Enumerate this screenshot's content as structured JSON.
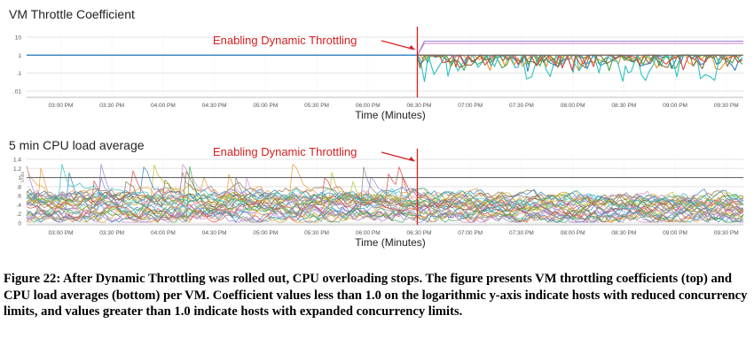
{
  "chart_data": [
    {
      "type": "line",
      "title": "VM Throttle Coefficient",
      "xlabel": "Time (Minutes)",
      "ylabel": "",
      "yscale": "log",
      "ylim": [
        0.01,
        10
      ],
      "yticks": [
        "10",
        "1",
        ".1",
        ".01"
      ],
      "yticks_values": [
        10,
        1,
        0.1,
        0.01
      ],
      "x_ticks": [
        "03:00 PM",
        "03:30 PM",
        "04:00 PM",
        "04:30 PM",
        "05:00 PM",
        "05:30 PM",
        "06:00 PM",
        "06:30 PM",
        "07:00 PM",
        "07:30 PM",
        "08:00 PM",
        "08:30 PM",
        "09:00 PM",
        "09:30 PM"
      ],
      "annotation": "Enabling Dynamic Throttling",
      "annotation_time": "06:30 PM",
      "grid": true,
      "series": [
        {
          "values_before": 1.0,
          "values_after": 6.0,
          "color": "#9b7fd0"
        },
        {
          "values_before": 1.0,
          "values_after": 4.5,
          "color": "#d08ccf"
        },
        {
          "values_before": 1.0,
          "values_after_range": [
            0.12,
            1.0
          ],
          "color": "#2f7fbf"
        },
        {
          "values_before": 1.0,
          "values_after_range": [
            0.12,
            1.0
          ],
          "color": "#e8962e"
        },
        {
          "values_before": 1.0,
          "values_after_range": [
            0.12,
            1.0
          ],
          "color": "#3fa64a"
        },
        {
          "values_before": 1.0,
          "values_after_range": [
            0.03,
            1.0
          ],
          "color": "#2bc0c0"
        },
        {
          "values_before": 1.0,
          "values_after_range": [
            0.12,
            1.0
          ],
          "color": "#d64541"
        },
        {
          "values_before": 1.0,
          "values_after_range": [
            0.15,
            1.0
          ],
          "color": "#8d6e3c"
        }
      ]
    },
    {
      "type": "line",
      "title": "5 min CPU load average",
      "xlabel": "Time (Minutes)",
      "ylabel": "Units",
      "ylim": [
        0,
        1.4
      ],
      "yticks": [
        "1.4",
        "1.2",
        "1",
        ".8",
        ".6",
        ".4",
        ".2",
        "0"
      ],
      "yticks_values": [
        1.4,
        1.2,
        1.0,
        0.8,
        0.6,
        0.4,
        0.2,
        0
      ],
      "x_ticks": [
        "03:00 PM",
        "03:30 PM",
        "04:00 PM",
        "04:30 PM",
        "05:00 PM",
        "05:30 PM",
        "06:00 PM",
        "06:30 PM",
        "07:00 PM",
        "07:30 PM",
        "08:00 PM",
        "08:30 PM",
        "09:00 PM",
        "09:30 PM"
      ],
      "annotation": "Enabling Dynamic Throttling",
      "annotation_time": "06:30 PM",
      "reference_line": 1.0,
      "grid": true,
      "series_count": 30,
      "typical_range_before": [
        0.05,
        0.9
      ],
      "typical_range_after": [
        0.05,
        0.8
      ],
      "peaks_before": [
        1.35,
        1.1,
        1.05,
        1.25
      ],
      "colors": [
        "#2f7fbf",
        "#e8962e",
        "#3fa64a",
        "#d64541",
        "#9b7fd0",
        "#8d6e3c",
        "#d08ccf",
        "#7f7f7f",
        "#bcbd22",
        "#2bc0c0"
      ]
    }
  ],
  "caption": "Figure 22: After Dynamic Throttling was rolled out, CPU overloading stops. The figure presents VM throttling coefficients (top) and CPU load averages (bottom) per VM. Coefficient values less than 1.0 on the logarithmic y-axis indicate hosts with reduced concurrency limits, and values greater than 1.0 indicate hosts with expanded concurrency limits."
}
